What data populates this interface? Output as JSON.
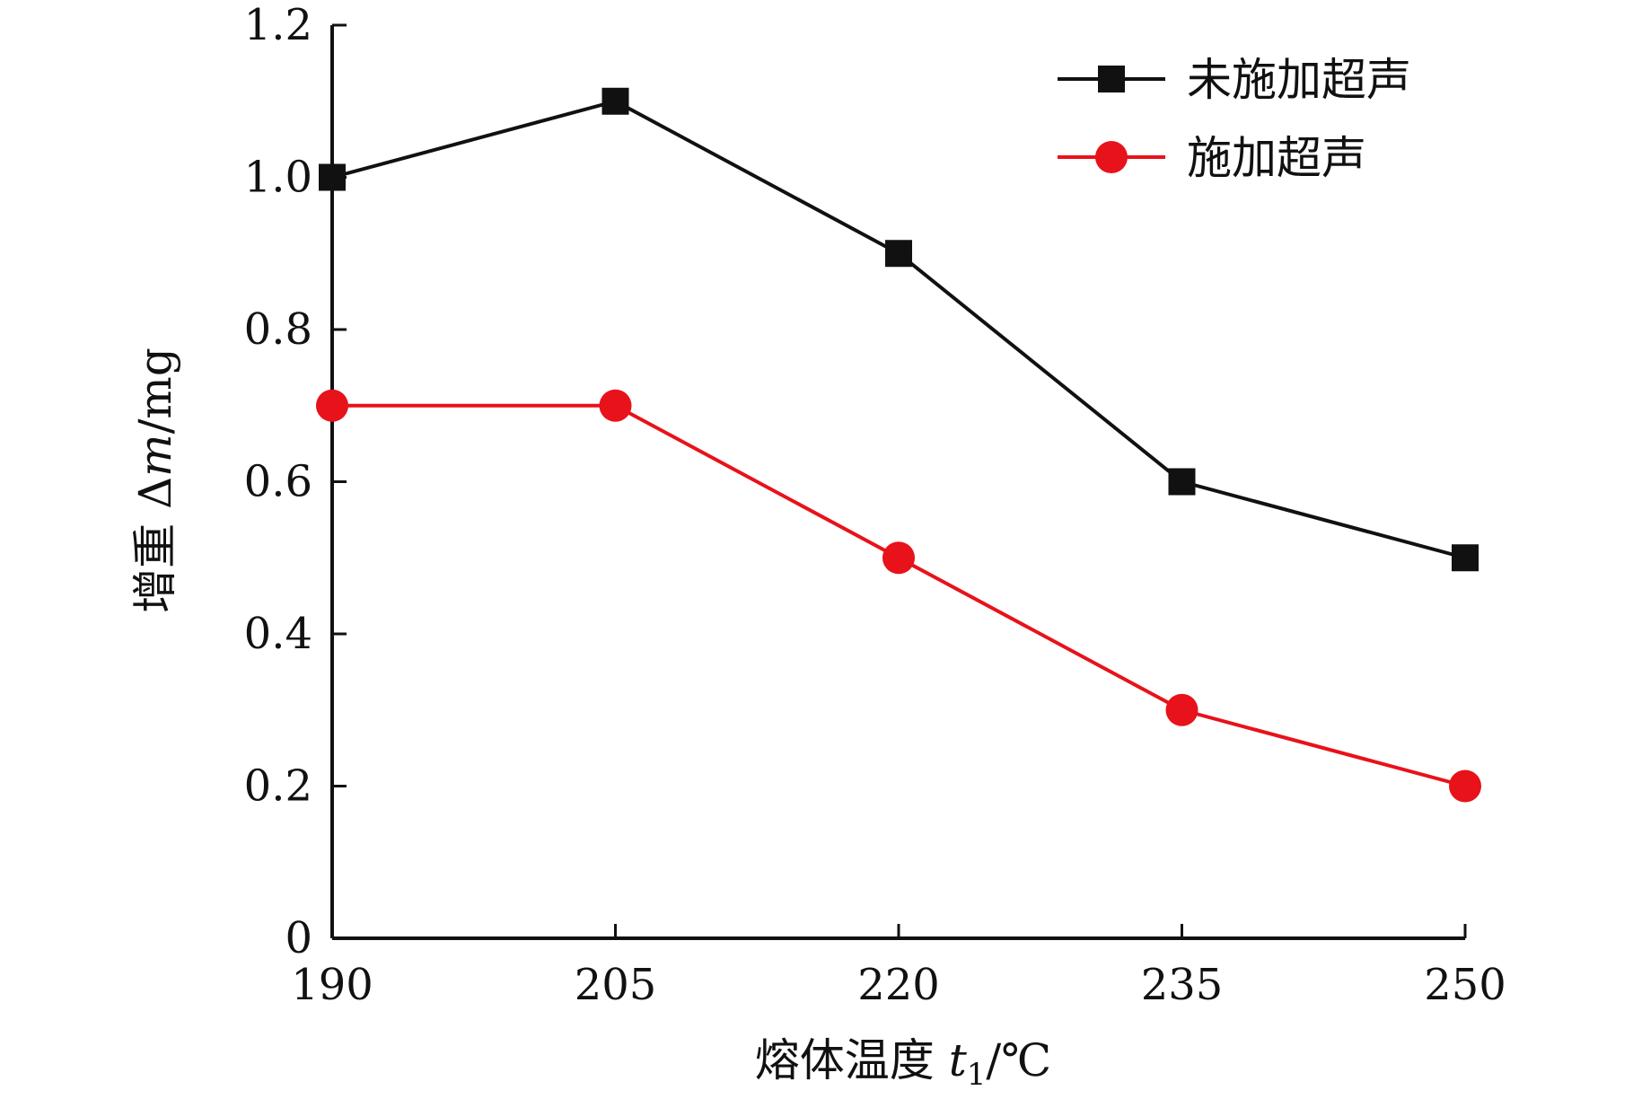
{
  "chart_data": {
    "type": "line",
    "x": [
      190,
      205,
      220,
      235,
      250
    ],
    "x_tick_labels": [
      "190",
      "205",
      "220",
      "235",
      "250"
    ],
    "y_tick_labels": [
      "0",
      "0.2",
      "0.4",
      "0.6",
      "0.8",
      "1.0",
      "1.2"
    ],
    "y_ticks": [
      0,
      0.2,
      0.4,
      0.6,
      0.8,
      1.0,
      1.2
    ],
    "xlim": [
      190,
      250
    ],
    "ylim": [
      0,
      1.2
    ],
    "xlabel": {
      "main": "熔体温度 ",
      "var": "t",
      "sub": "1",
      "unit": "/℃"
    },
    "ylabel": {
      "main": "增重 Δ",
      "var": "m",
      "unit": "/mg"
    },
    "series": [
      {
        "name": "未施加超声",
        "values": [
          1.0,
          1.1,
          0.9,
          0.6,
          0.5
        ],
        "color": "#111111",
        "marker": "square"
      },
      {
        "name": "施加超声",
        "values": [
          0.7,
          0.7,
          0.5,
          0.3,
          0.2
        ],
        "color": "#e8121a",
        "marker": "circle"
      }
    ],
    "legend_position": "top-right",
    "grid": false
  }
}
